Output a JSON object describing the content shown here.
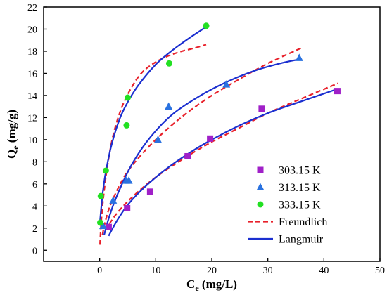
{
  "chart_data": {
    "type": "scatter",
    "xlabel": "C",
    "xlabel_sub": "e",
    "xlabel_unit": " (mg/L)",
    "ylabel": "Q",
    "ylabel_sub": "e",
    "ylabel_unit": " (mg/g)",
    "xlim": [
      -10,
      50
    ],
    "ylim": [
      -1,
      22
    ],
    "xticks": [
      0,
      10,
      20,
      30,
      40,
      50
    ],
    "yticks": [
      0,
      2,
      4,
      6,
      8,
      10,
      12,
      14,
      16,
      18,
      20,
      22
    ],
    "grid": false,
    "legend_position": "bottom-right",
    "series": [
      {
        "name": "303.15 K",
        "marker": "square",
        "color": "#a020c8",
        "points": [
          [
            1.6,
            2.1
          ],
          [
            4.9,
            3.8
          ],
          [
            9.0,
            5.3
          ],
          [
            15.7,
            8.5
          ],
          [
            19.7,
            10.1
          ],
          [
            28.9,
            12.8
          ],
          [
            42.4,
            14.4
          ]
        ]
      },
      {
        "name": "313.15 K",
        "marker": "triangle",
        "color": "#2a72e0",
        "points": [
          [
            0.6,
            2.2
          ],
          [
            2.4,
            4.5
          ],
          [
            4.7,
            6.3
          ],
          [
            5.2,
            6.3
          ],
          [
            10.4,
            10.0
          ],
          [
            12.3,
            13.0
          ],
          [
            22.6,
            15.0
          ],
          [
            35.6,
            17.4
          ]
        ]
      },
      {
        "name": "333.15 K",
        "marker": "circle",
        "color": "#22e022",
        "points": [
          [
            0.1,
            2.5
          ],
          [
            0.2,
            4.9
          ],
          [
            1.1,
            7.2
          ],
          [
            4.8,
            11.3
          ],
          [
            5.0,
            13.8
          ],
          [
            12.4,
            16.9
          ],
          [
            19.0,
            20.3
          ]
        ]
      },
      {
        "name": "Freundlich",
        "kind": "curve",
        "style": "dashed",
        "color": "#e8202a",
        "curves": [
          [
            [
              1.0,
              1.8
            ],
            [
              3.0,
              3.3
            ],
            [
              6.0,
              4.9
            ],
            [
              10.0,
              6.6
            ],
            [
              15.0,
              8.3
            ],
            [
              20.0,
              9.8
            ],
            [
              25.0,
              11.1
            ],
            [
              30.0,
              12.4
            ],
            [
              35.0,
              13.5
            ],
            [
              42.5,
              15.1
            ]
          ],
          [
            [
              0.5,
              1.4
            ],
            [
              1.0,
              2.6
            ],
            [
              2.0,
              4.2
            ],
            [
              4.0,
              6.3
            ],
            [
              6.0,
              7.8
            ],
            [
              10.0,
              10.0
            ],
            [
              15.0,
              12.2
            ],
            [
              20.0,
              14.0
            ],
            [
              25.0,
              15.5
            ],
            [
              30.0,
              16.9
            ],
            [
              36.0,
              18.3
            ]
          ],
          [
            [
              0.05,
              0.5
            ],
            [
              0.3,
              2.8
            ],
            [
              0.8,
              5.4
            ],
            [
              1.5,
              8.0
            ],
            [
              2.5,
              10.6
            ],
            [
              4.0,
              13.0
            ],
            [
              6.0,
              15.0
            ],
            [
              8.0,
              16.3
            ],
            [
              11.0,
              17.3
            ],
            [
              14.0,
              17.9
            ],
            [
              17.0,
              18.3
            ],
            [
              19.0,
              18.6
            ]
          ]
        ]
      },
      {
        "name": "Langmuir",
        "kind": "curve",
        "style": "solid",
        "color": "#1b2fd0",
        "curves": [
          [
            [
              1.6,
              1.3
            ],
            [
              3.0,
              2.6
            ],
            [
              5.0,
              4.1
            ],
            [
              8.0,
              5.7
            ],
            [
              12.0,
              7.4
            ],
            [
              16.0,
              8.8
            ],
            [
              20.0,
              10.0
            ],
            [
              25.0,
              11.3
            ],
            [
              30.0,
              12.4
            ],
            [
              35.0,
              13.3
            ],
            [
              42.5,
              14.6
            ]
          ],
          [
            [
              0.8,
              1.4
            ],
            [
              1.5,
              2.7
            ],
            [
              2.5,
              4.2
            ],
            [
              4.0,
              6.0
            ],
            [
              6.0,
              8.0
            ],
            [
              9.0,
              10.2
            ],
            [
              13.0,
              12.3
            ],
            [
              18.0,
              14.0
            ],
            [
              23.0,
              15.3
            ],
            [
              28.0,
              16.3
            ],
            [
              33.0,
              17.0
            ],
            [
              36.0,
              17.3
            ]
          ],
          [
            [
              0.05,
              2.6
            ],
            [
              0.5,
              5.0
            ],
            [
              1.0,
              6.8
            ],
            [
              2.0,
              9.3
            ],
            [
              3.5,
              11.8
            ],
            [
              5.0,
              13.4
            ],
            [
              7.0,
              15.0
            ],
            [
              10.0,
              16.8
            ],
            [
              13.0,
              18.1
            ],
            [
              16.0,
              19.2
            ],
            [
              19.0,
              20.2
            ]
          ]
        ]
      }
    ]
  }
}
